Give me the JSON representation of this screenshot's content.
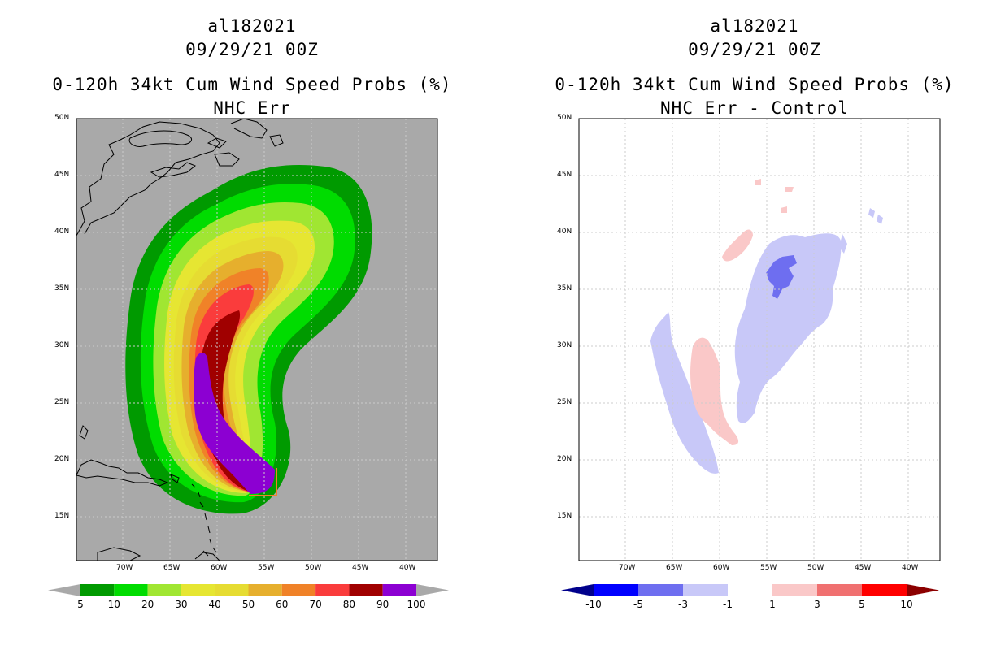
{
  "left_panel": {
    "storm_id": "al182021",
    "datetime": "09/29/21 00Z",
    "product": "0-120h 34kt Cum Wind Speed Probs (%)",
    "subtitle": "NHC Err",
    "colorbar": {
      "labels": [
        "5",
        "10",
        "20",
        "30",
        "40",
        "50",
        "60",
        "70",
        "80",
        "90",
        "100"
      ],
      "colors": [
        "#009a00",
        "#00dc00",
        "#a0e632",
        "#e6e632",
        "#e6dc32",
        "#e6af2d",
        "#f08228",
        "#fa3c3c",
        "#a00000",
        "#8c00d2"
      ],
      "under_color": "#a9a9a9",
      "over_color": "#a9a9a9"
    }
  },
  "right_panel": {
    "storm_id": "al182021",
    "datetime": "09/29/21 00Z",
    "product": "0-120h 34kt Cum Wind Speed Probs (%)",
    "subtitle": "NHC Err - Control",
    "colorbar": {
      "labels": [
        "-10",
        "-5",
        "-3",
        "-1",
        "1",
        "3",
        "5",
        "10"
      ],
      "colors": [
        "#0000ff",
        "#6e6ef0",
        "#c8c8f8",
        "#ffffff",
        "#fac8c8",
        "#f07070",
        "#ff0000"
      ],
      "under_color": "#00008c",
      "over_color": "#8c0000"
    }
  },
  "map": {
    "lat_labels": [
      "50N",
      "45N",
      "40N",
      "35N",
      "30N",
      "25N",
      "20N",
      "15N"
    ],
    "lon_labels": [
      "70W",
      "65W",
      "60W",
      "55W",
      "50W",
      "45W",
      "40W"
    ],
    "background_color": "#a9a9a9",
    "grid_color": "#cccccc"
  }
}
